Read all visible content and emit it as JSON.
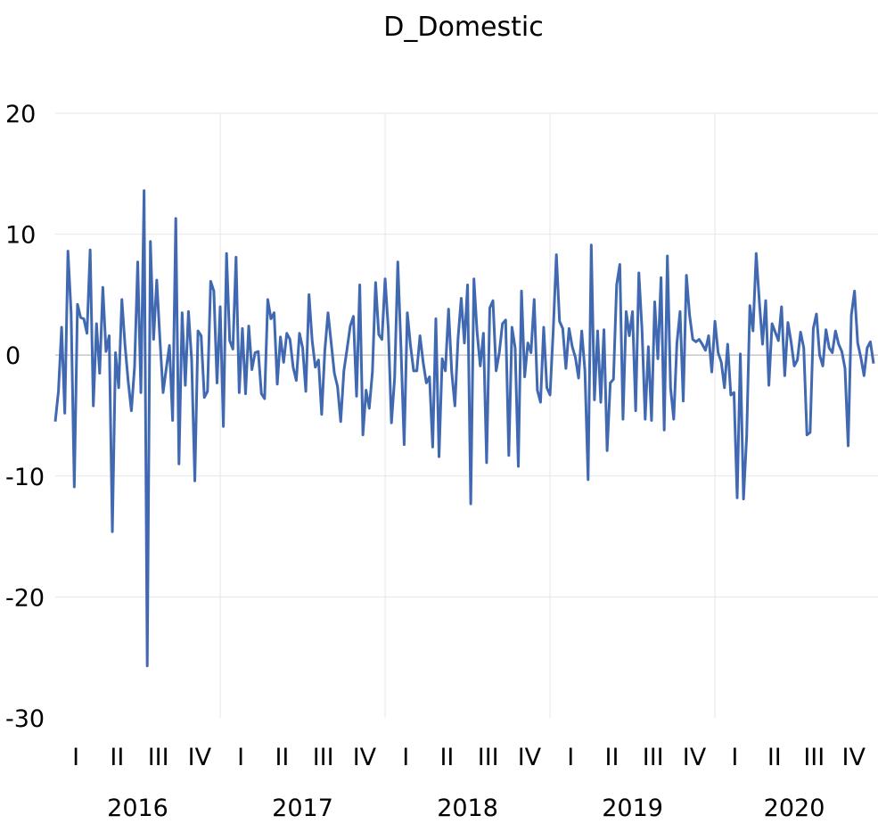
{
  "chart_data": {
    "type": "line",
    "title": "D_Domestic",
    "xlabel": "",
    "ylabel": "",
    "ylim": [
      -30,
      20
    ],
    "yticks": [
      "20",
      "10",
      "0",
      "-10",
      "-20",
      "-30"
    ],
    "grid": true,
    "legend": "none",
    "quarter_labels": [
      "I",
      "II",
      "III",
      "IV"
    ],
    "years": [
      "2016",
      "2017",
      "2018",
      "2019",
      "2020"
    ],
    "series": [
      {
        "color": "#4169b2",
        "x_unit": "week index (52 per year, starting 2016 week 1)",
        "values": [
          -5.5,
          -3.0,
          2.3,
          -4.8,
          8.6,
          3.5,
          -10.9,
          4.2,
          3.1,
          3.0,
          1.8,
          8.7,
          -4.2,
          2.6,
          -1.5,
          5.6,
          0.3,
          1.6,
          -14.6,
          0.2,
          -2.7,
          4.6,
          0.8,
          -2.2,
          -4.6,
          -1.0,
          7.7,
          -3.1,
          13.6,
          -25.7,
          9.4,
          1.3,
          6.2,
          1.3,
          -3.1,
          -1.1,
          0.8,
          -5.4,
          11.3,
          -9.0,
          3.5,
          -2.5,
          3.6,
          -0.4,
          -10.4,
          2.0,
          1.6,
          -3.5,
          -3.0,
          6.1,
          5.3,
          -2.3,
          4.0,
          -5.9,
          8.4,
          1.2,
          0.5,
          8.1,
          -3.1,
          2.2,
          -3.2,
          2.4,
          -1.2,
          0.2,
          0.3,
          -3.2,
          -3.6,
          4.6,
          3.0,
          3.5,
          -2.4,
          1.5,
          -0.6,
          1.8,
          1.3,
          -1.0,
          -2.1,
          1.8,
          0.6,
          -3.0,
          5.0,
          1.2,
          -1.0,
          -0.4,
          -4.9,
          0.4,
          3.5,
          1.0,
          -1.5,
          -2.6,
          -5.5,
          -1.3,
          0.5,
          2.4,
          3.2,
          -3.4,
          5.8,
          -6.6,
          -2.9,
          -4.4,
          -1.4,
          6.0,
          1.7,
          1.3,
          6.3,
          2.2,
          -5.6,
          -1.9,
          7.7,
          0.6,
          -7.4,
          3.5,
          0.8,
          -1.3,
          -1.3,
          1.6,
          -0.6,
          -2.3,
          -1.8,
          -7.6,
          3.0,
          -8.4,
          -0.3,
          -1.3,
          3.8,
          -1.4,
          -4.2,
          1.4,
          4.7,
          1.0,
          5.8,
          -12.3,
          6.3,
          1.9,
          -0.9,
          1.8,
          -8.9,
          3.9,
          4.5,
          -1.3,
          0.2,
          2.6,
          2.9,
          -8.3,
          2.3,
          0.6,
          -9.2,
          5.3,
          -1.8,
          1.0,
          0.2,
          4.6,
          -2.9,
          -3.9,
          2.3,
          -2.7,
          -3.3,
          2.0,
          8.3,
          2.8,
          2.2,
          -1.1,
          2.2,
          0.7,
          -0.2,
          -1.9,
          2.0,
          -1.3,
          -10.3,
          9.1,
          -3.7,
          2.0,
          -3.9,
          2.1,
          -7.9,
          -2.3,
          -2.0,
          5.8,
          7.5,
          -5.3,
          3.6,
          1.6,
          3.6,
          -4.6,
          6.8,
          2.1,
          -5.3,
          0.7,
          -5.4,
          4.4,
          -0.3,
          6.4,
          -6.2,
          8.2,
          -2.7,
          -5.3,
          1.0,
          3.6,
          -3.8,
          6.6,
          3.3,
          1.3,
          1.1,
          1.3,
          0.9,
          0.4,
          1.6,
          -1.4,
          2.8,
          0.2,
          -0.6,
          -2.7,
          0.9,
          -3.3,
          -3.1,
          -11.8,
          0.1,
          -11.9,
          -6.7,
          4.1,
          2.0,
          8.4,
          4.4,
          0.9,
          4.5,
          -2.5,
          2.6,
          1.9,
          1.2,
          4.0,
          -1.7,
          2.7,
          1.1,
          -0.9,
          -0.4,
          1.9,
          0.6,
          -6.6,
          -6.4,
          2.2,
          3.4,
          0.0,
          -0.9,
          2.1,
          0.6,
          0.2,
          2.0,
          0.9,
          0.3,
          -1.1,
          -7.5,
          3.3,
          5.3,
          1.0,
          -0.2,
          -1.7,
          0.6,
          1.1,
          -0.7
        ]
      }
    ]
  }
}
